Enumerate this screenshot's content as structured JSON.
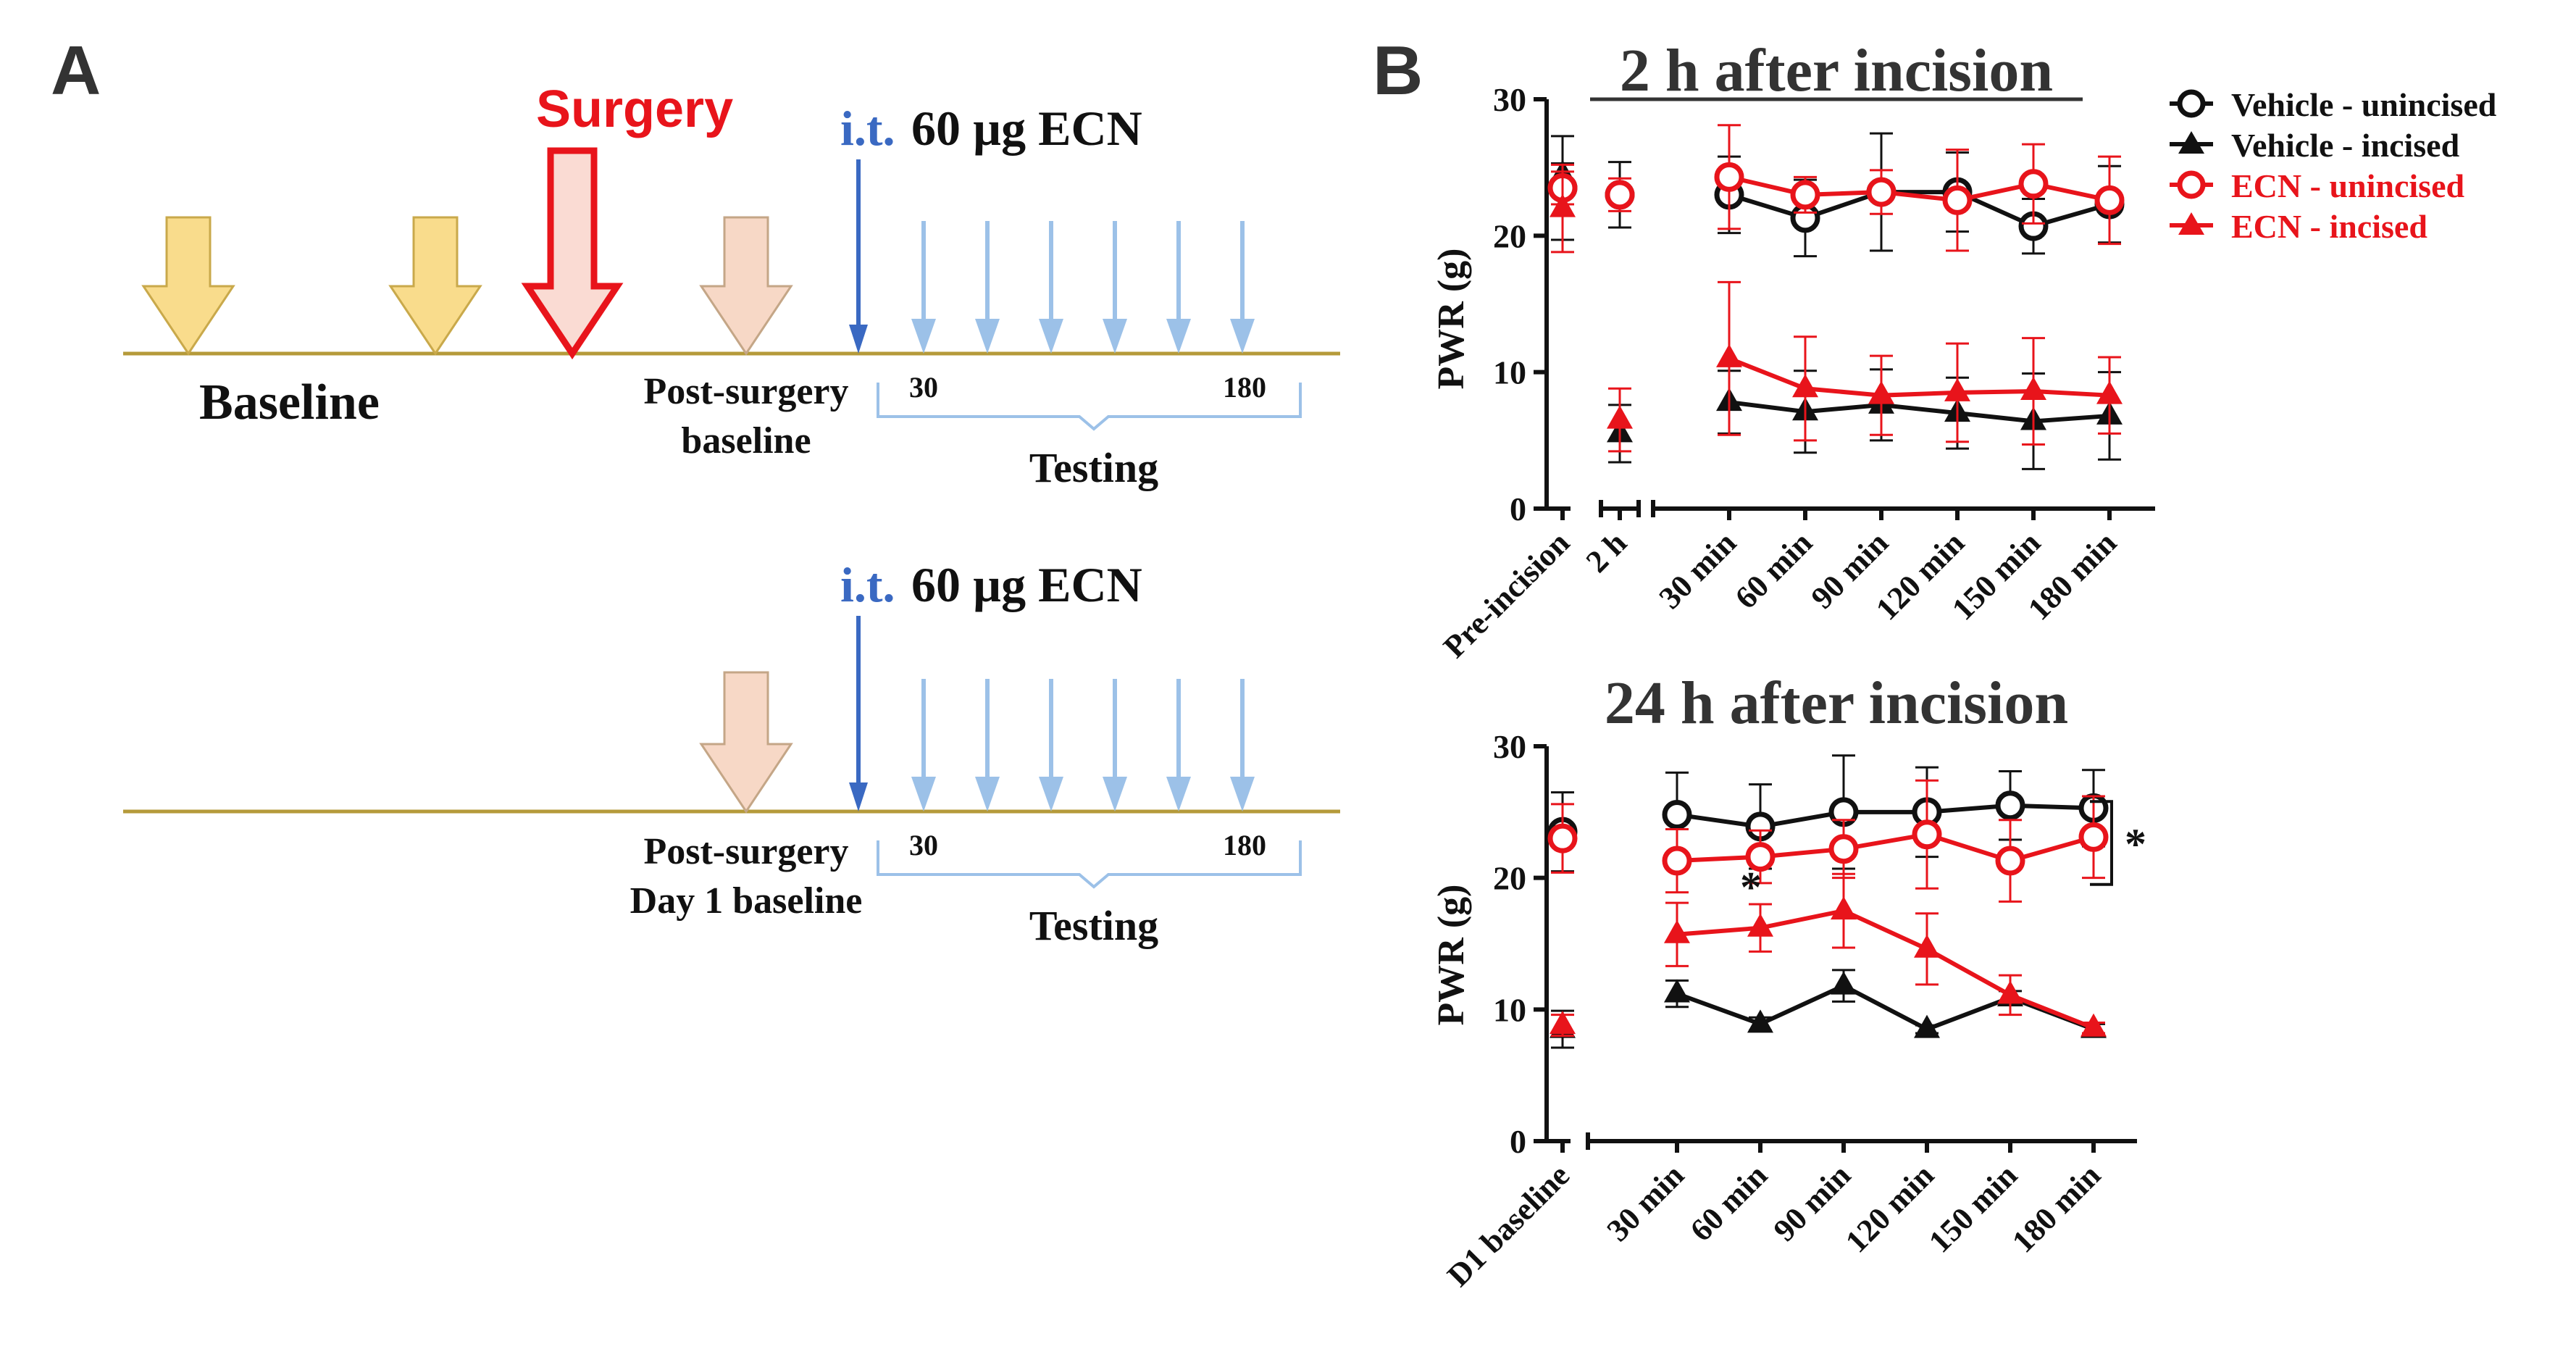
{
  "colors": {
    "black": "#111111",
    "red": "#e8141b",
    "timeline": "#b59a3a",
    "baseline_arrow_fill": "#f9dc8c",
    "baseline_arrow_stroke": "#c9a94b",
    "surgery_arrow_fill": "#fadbd3",
    "surgery_arrow_stroke": "#e8141b",
    "post_arrow_fill": "#f7d8c6",
    "post_arrow_stroke": "#c4a687",
    "it_arrow": "#3a69c2",
    "test_arrow": "#9cc1e8",
    "bracket": "#9cc1e8",
    "it_text": "#3a69c2"
  },
  "panelA": {
    "label": "A",
    "top": {
      "surgery_label": "Surgery",
      "it_label": "i.t.",
      "dose_label": "60 µg ECN",
      "baseline_label": "Baseline",
      "post_line1": "Post-surgery",
      "post_line2": "baseline",
      "tick_start": "30",
      "tick_end": "180",
      "testing_label": "Testing"
    },
    "bottom": {
      "it_label": "i.t.",
      "dose_label": "60 µg ECN",
      "post_line1": "Post-surgery",
      "post_line2": "Day 1 baseline",
      "tick_start": "30",
      "tick_end": "180",
      "testing_label": "Testing"
    }
  },
  "panelB": {
    "label": "B",
    "legend": [
      {
        "label": "Vehicle - unincised",
        "color": "#111111",
        "marker": "circle-open"
      },
      {
        "label": "Vehicle - incised",
        "color": "#111111",
        "marker": "triangle"
      },
      {
        "label": "ECN - unincised",
        "color": "#e8141b",
        "marker": "circle-open"
      },
      {
        "label": "ECN - incised",
        "color": "#e8141b",
        "marker": "triangle"
      }
    ]
  },
  "chart_data": [
    {
      "type": "line",
      "title": "2 h after incision",
      "ylabel": "PWR (g)",
      "xlabel": "",
      "ylim": [
        0,
        30
      ],
      "yticks": [
        "0",
        "10",
        "20",
        "30"
      ],
      "baseline_categories": [
        "Pre-incision",
        "2 h"
      ],
      "categories": [
        "30 min",
        "60 min",
        "90 min",
        "120 min",
        "150 min",
        "180 min"
      ],
      "series": [
        {
          "name": "Vehicle - unincised",
          "baseline": [
            23.5,
            23.0
          ],
          "values": [
            23.0,
            21.3,
            23.2,
            23.2,
            20.7,
            22.3
          ],
          "baseline_err": [
            3.8,
            2.4
          ],
          "errors": [
            2.8,
            2.8,
            4.3,
            2.9,
            2.0,
            2.8
          ]
        },
        {
          "name": "Vehicle - incised",
          "baseline": [
            24.5,
            5.5
          ],
          "values": [
            7.8,
            7.1,
            7.6,
            7.0,
            6.4,
            6.8
          ],
          "baseline_err": [
            0.8,
            2.1
          ],
          "errors": [
            2.3,
            3.0,
            2.6,
            2.6,
            3.5,
            3.2
          ]
        },
        {
          "name": "ECN - unincised",
          "baseline": [
            23.5,
            23.0
          ],
          "values": [
            24.3,
            23.0,
            23.2,
            22.6,
            23.8,
            22.6
          ],
          "baseline_err": [
            1.2,
            1.2
          ],
          "errors": [
            3.8,
            1.3,
            1.6,
            3.7,
            2.9,
            3.2
          ]
        },
        {
          "name": "ECN - incised",
          "baseline": [
            22.0,
            6.5
          ],
          "values": [
            11.0,
            8.8,
            8.3,
            8.5,
            8.6,
            8.3
          ],
          "baseline_err": [
            3.2,
            2.3
          ],
          "errors": [
            5.6,
            3.8,
            2.9,
            3.6,
            3.9,
            2.8
          ]
        }
      ]
    },
    {
      "type": "line",
      "title": "24 h after incision",
      "ylabel": "PWR (g)",
      "xlabel": "",
      "ylim": [
        0,
        30
      ],
      "yticks": [
        "0",
        "10",
        "20",
        "30"
      ],
      "baseline_categories": [
        "D1 baseline"
      ],
      "categories": [
        "30 min",
        "60 min",
        "90 min",
        "120 min",
        "150 min",
        "180 min"
      ],
      "series": [
        {
          "name": "Vehicle - unincised",
          "baseline": [
            23.5
          ],
          "values": [
            24.8,
            23.9,
            25.0,
            25.0,
            25.5,
            25.3
          ],
          "baseline_err": [
            3.0
          ],
          "errors": [
            3.2,
            3.2,
            4.3,
            3.4,
            2.6,
            2.9
          ]
        },
        {
          "name": "Vehicle - incised",
          "baseline": [
            8.5
          ],
          "values": [
            11.2,
            8.9,
            11.8,
            8.5,
            10.9,
            8.5
          ],
          "baseline_err": [
            1.4
          ],
          "errors": [
            1.0,
            0.5,
            1.2,
            0.3,
            0.5,
            0.4
          ]
        },
        {
          "name": "ECN - unincised",
          "baseline": [
            23.0
          ],
          "values": [
            21.3,
            21.6,
            22.2,
            23.3,
            21.3,
            23.1
          ],
          "baseline_err": [
            2.6
          ],
          "errors": [
            2.4,
            2.0,
            2.2,
            4.1,
            3.1,
            3.1
          ]
        },
        {
          "name": "ECN - incised",
          "baseline": [
            8.8
          ],
          "values": [
            15.7,
            16.2,
            17.5,
            14.6,
            11.1,
            8.6
          ],
          "baseline_err": [
            0.8
          ],
          "errors": [
            2.4,
            1.8,
            2.8,
            2.7,
            1.5,
            0.4
          ]
        }
      ],
      "annotations": [
        {
          "text": "*",
          "position": "above ECN - incised at 60 min"
        },
        {
          "text": "*",
          "position": "bracket right of 150–180 min unincised groups"
        }
      ]
    }
  ]
}
